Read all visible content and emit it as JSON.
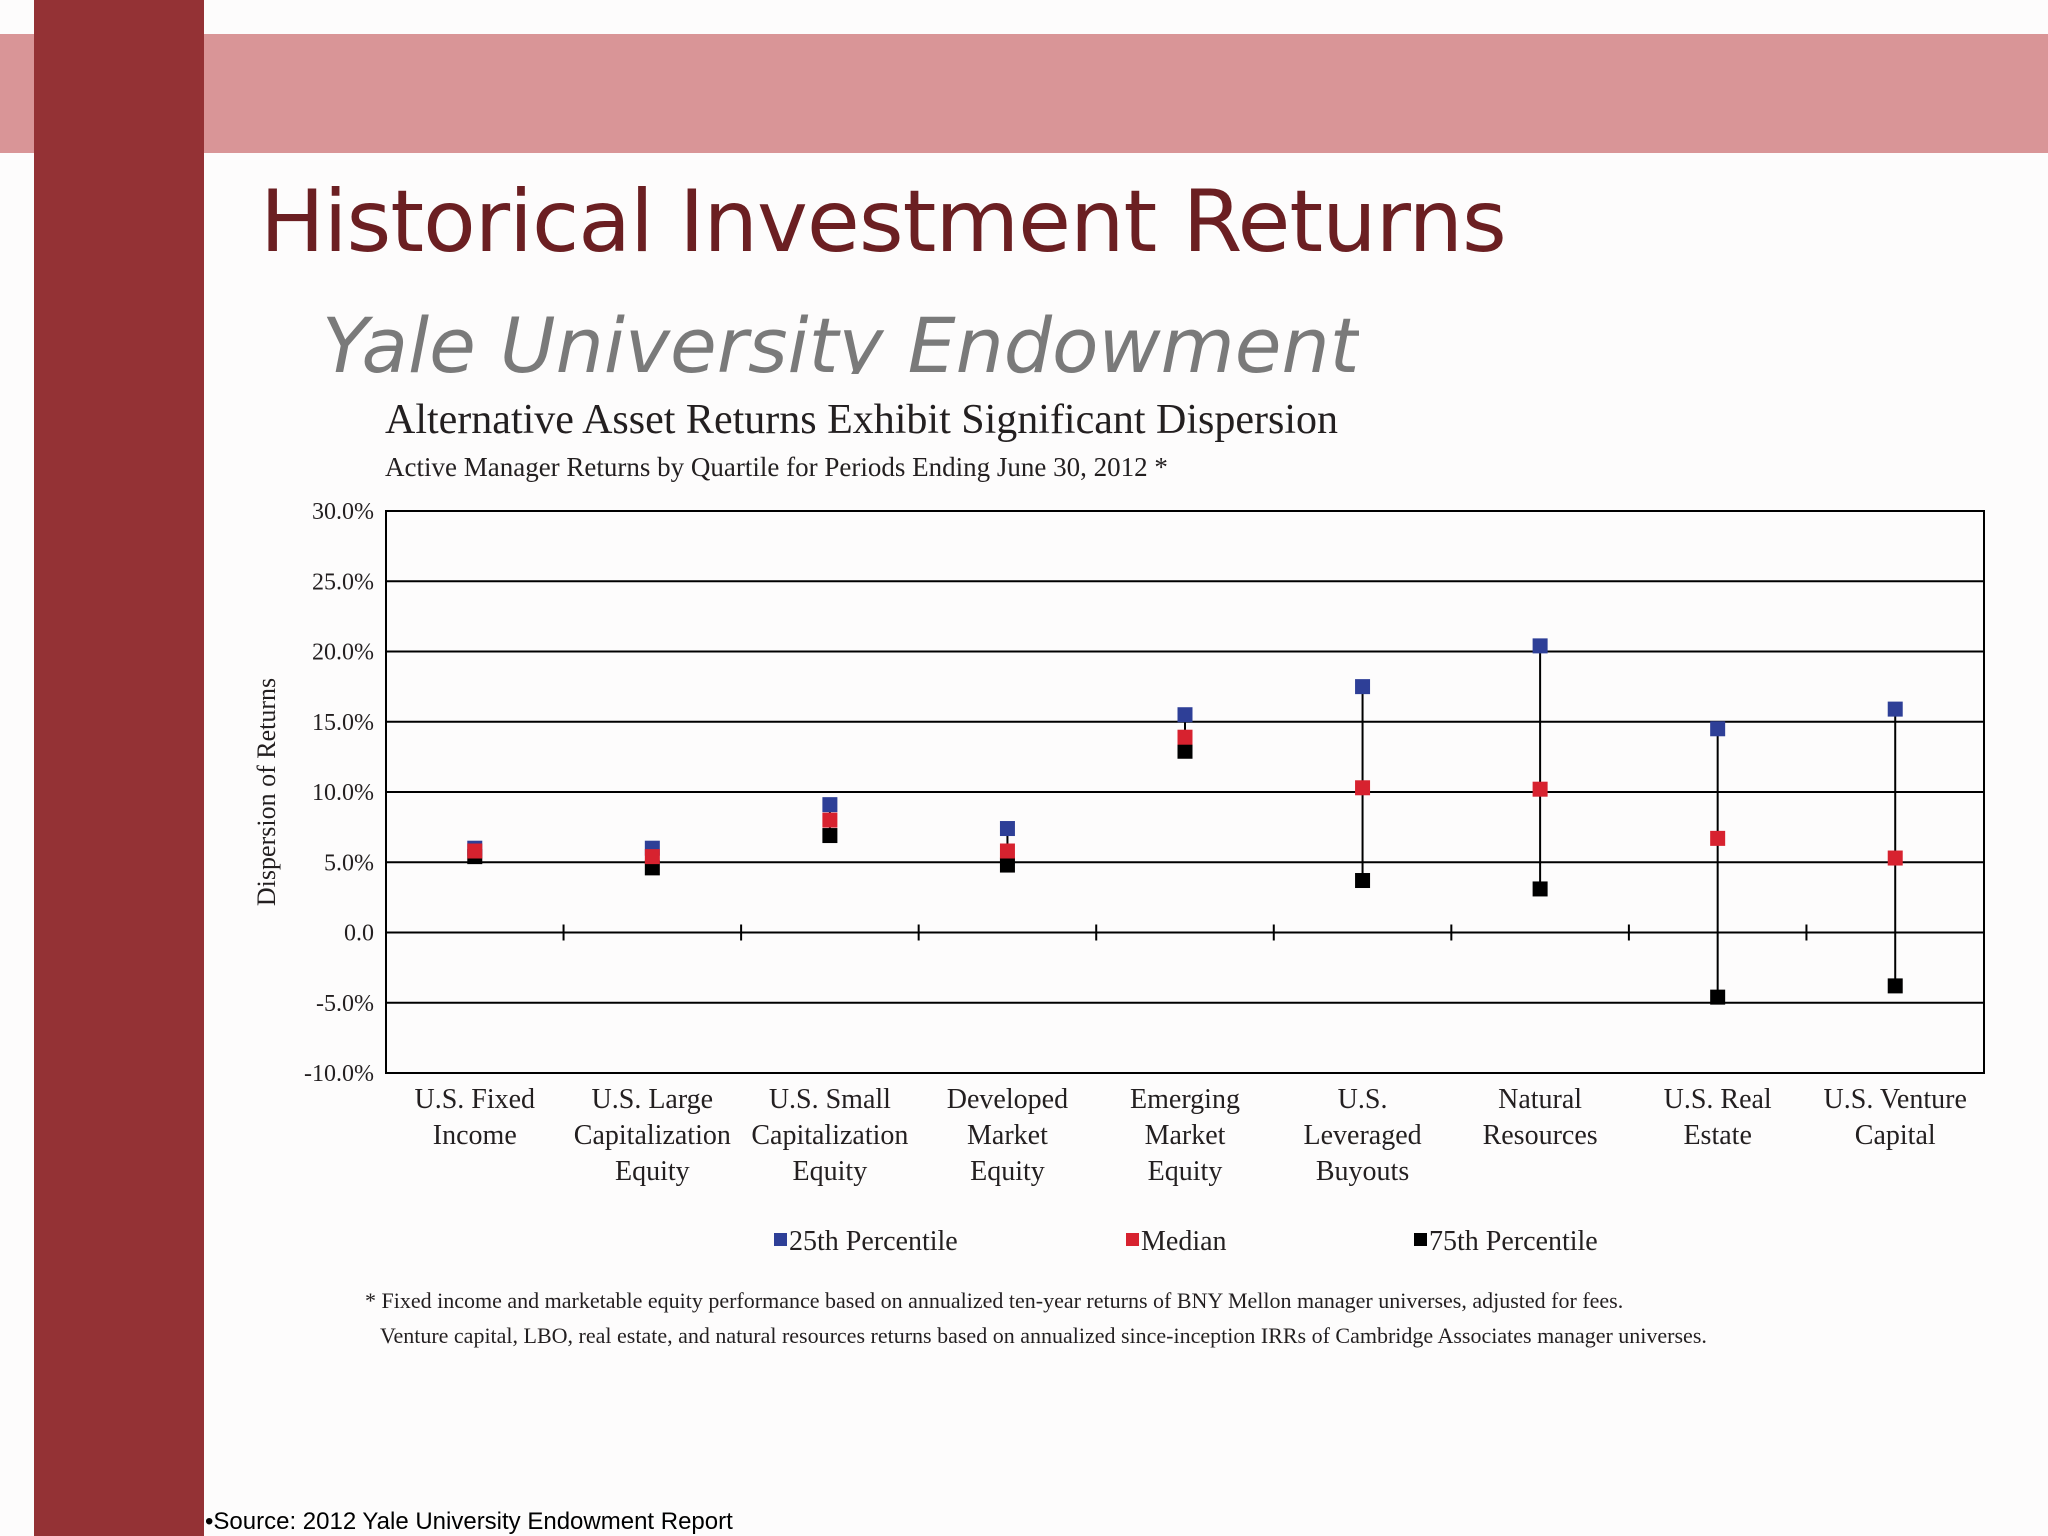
{
  "slide": {
    "title": "Historical Investment Returns",
    "subtitle": "Yale University Endowment",
    "source": "•Source: 2012 Yale University Endowment Report",
    "colors": {
      "band": "#d99597",
      "bar": "#943235",
      "title": "#6b1f22"
    }
  },
  "chart_data": {
    "type": "scatter",
    "title": "Alternative Asset Returns Exhibit Significant Dispersion",
    "subtitle": "Active Manager Returns by Quartile for Periods Ending June 30, 2012 *",
    "ylabel": "Dispersion of Returns",
    "xlabel": "",
    "ylim": [
      -10,
      30
    ],
    "yticks": [
      "30.0%",
      "25.0%",
      "20.0%",
      "15.0%",
      "10.0%",
      "5.0%",
      "0.0",
      "-5.0%",
      "-10.0%"
    ],
    "ytick_values": [
      30,
      25,
      20,
      15,
      10,
      5,
      0,
      -5,
      -10
    ],
    "grid": true,
    "legend_position": "bottom",
    "categories": [
      [
        "U.S. Fixed",
        "Income"
      ],
      [
        "U.S. Large",
        "Capitalization",
        "Equity"
      ],
      [
        "U.S. Small",
        "Capitalization",
        "Equity"
      ],
      [
        "Developed",
        "Market",
        "Equity"
      ],
      [
        "Emerging",
        "Market",
        "Equity"
      ],
      [
        "U.S.",
        "Leveraged",
        "Buyouts"
      ],
      [
        "Natural",
        "Resources"
      ],
      [
        "U.S. Real",
        "Estate"
      ],
      [
        "U.S. Venture",
        "Capital"
      ]
    ],
    "series": [
      {
        "name": "25th Percentile",
        "color": "#2e3f97",
        "values": [
          6.0,
          6.0,
          9.1,
          7.4,
          15.5,
          17.5,
          20.4,
          14.5,
          15.9
        ]
      },
      {
        "name": "Median",
        "color": "#d7222f",
        "values": [
          5.8,
          5.4,
          8.0,
          5.8,
          13.9,
          10.3,
          10.2,
          6.7,
          5.3
        ]
      },
      {
        "name": "75th Percentile",
        "color": "#000000",
        "values": [
          5.4,
          4.6,
          6.9,
          4.8,
          12.9,
          3.7,
          3.1,
          -4.6,
          -3.8
        ]
      }
    ]
  },
  "footnotes": [
    "* Fixed income and marketable equity performance based on annualized ten-year returns of BNY Mellon manager universes, adjusted for fees.",
    "Venture capital, LBO, real estate, and natural resources returns based on annualized since-inception IRRs of Cambridge Associates manager universes."
  ]
}
